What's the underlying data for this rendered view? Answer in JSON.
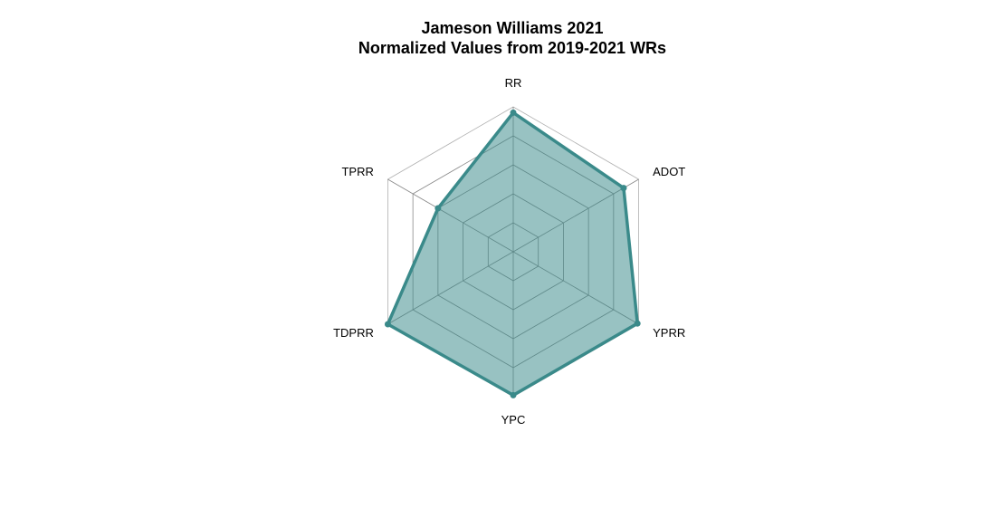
{
  "chart_data": {
    "type": "radar",
    "title_line1": "Jameson Williams 2021",
    "title_line2": "Normalized Values from 2019-2021 WRs",
    "axes": [
      "RR",
      "ADOT",
      "YPRR",
      "YPC",
      "TDPRR",
      "TPRR"
    ],
    "series": [
      {
        "values": [
          0.96,
          0.88,
          0.99,
          0.99,
          1.0,
          0.6
        ]
      }
    ],
    "range": [
      0,
      1
    ],
    "grid_levels": 5,
    "fill_color": "#3a8a8a",
    "fill_opacity": 0.52,
    "line_color": "#3a8a8a",
    "grid_color": "#888888"
  }
}
